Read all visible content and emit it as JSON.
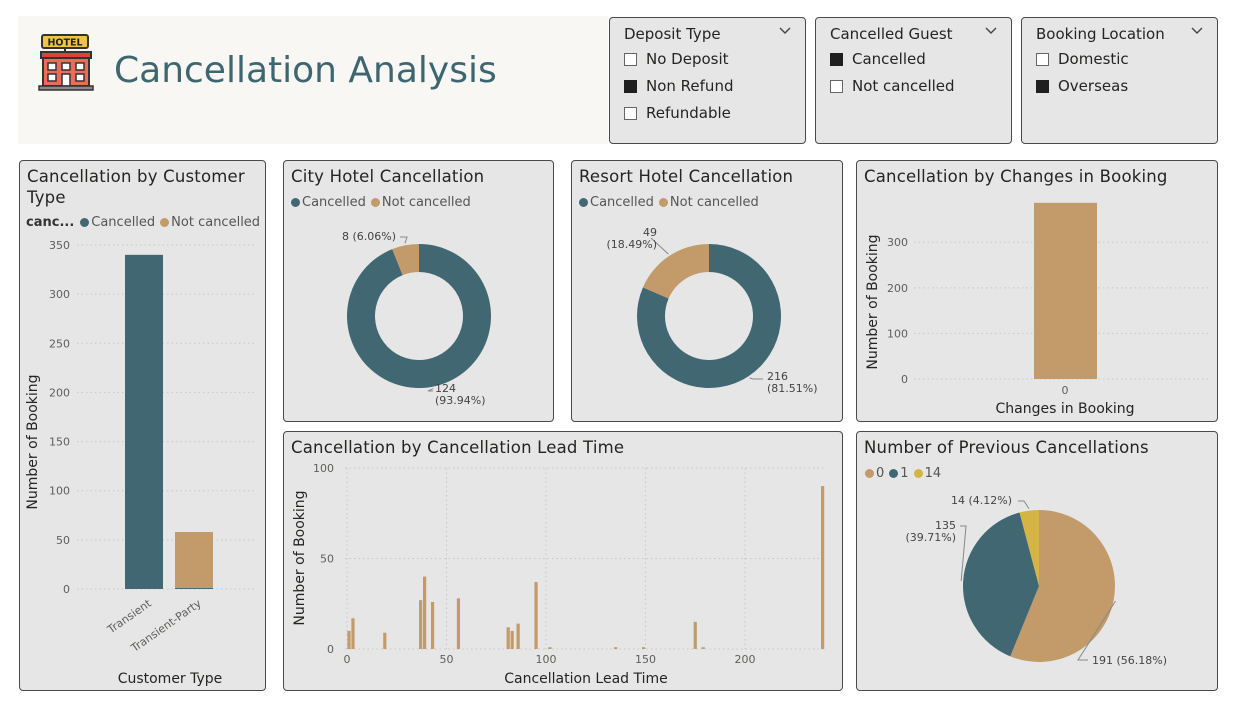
{
  "page": {
    "title": "Cancellation Analysis",
    "logo_text": "HOTEL"
  },
  "colors": {
    "cancelled": "#416872",
    "not_cancelled": "#c39a69",
    "gold": "#d6b443",
    "panel": "#e6e6e6"
  },
  "slicers": [
    {
      "title": "Deposit Type",
      "items": [
        {
          "label": "No Deposit",
          "checked": false
        },
        {
          "label": "Non Refund",
          "checked": true
        },
        {
          "label": "Refundable",
          "checked": false
        }
      ]
    },
    {
      "title": "Cancelled Guest",
      "items": [
        {
          "label": "Cancelled",
          "checked": true
        },
        {
          "label": "Not cancelled",
          "checked": false
        }
      ]
    },
    {
      "title": "Booking Location",
      "items": [
        {
          "label": "Domestic",
          "checked": false
        },
        {
          "label": "Overseas",
          "checked": true
        }
      ]
    }
  ],
  "customer": {
    "title": "Cancellation by Customer Type",
    "legend_title": "canc...",
    "legend": [
      "Cancelled",
      "Not cancelled"
    ]
  },
  "city": {
    "title": "City Hotel Cancellation",
    "legend": [
      "Cancelled",
      "Not cancelled"
    ]
  },
  "resort": {
    "title": "Resort Hotel Cancellation",
    "legend": [
      "Cancelled",
      "Not cancelled"
    ]
  },
  "changes": {
    "title": "Cancellation by Changes in Booking"
  },
  "leadtime": {
    "title": "Cancellation by Cancellation Lead Time"
  },
  "previous": {
    "title": "Number of Previous Cancellations",
    "legend": [
      "0",
      "1",
      "14"
    ]
  },
  "chart_data": [
    {
      "id": "customer",
      "type": "bar",
      "title": "Cancellation by Customer Type",
      "xlabel": "Customer Type",
      "ylabel": "Number of Booking",
      "categories": [
        "Transient",
        "Transient-Party"
      ],
      "series": [
        {
          "name": "Cancelled",
          "values": [
            340,
            1
          ]
        },
        {
          "name": "Not cancelled",
          "values": [
            0,
            57
          ]
        }
      ],
      "ylim": [
        0,
        350
      ],
      "yticks": [
        0,
        50,
        100,
        150,
        200,
        250,
        300,
        350
      ],
      "legend_position": "top-left",
      "grid": true
    },
    {
      "id": "city",
      "type": "pie",
      "title": "City Hotel Cancellation",
      "donut": true,
      "labels": [
        "Cancelled",
        "Not cancelled"
      ],
      "values": [
        124,
        8
      ],
      "data_labels": [
        [
          "124",
          "(93.94%)"
        ],
        [
          "8 (6.06%)"
        ]
      ]
    },
    {
      "id": "resort",
      "type": "pie",
      "title": "Resort Hotel Cancellation",
      "donut": true,
      "labels": [
        "Cancelled",
        "Not cancelled"
      ],
      "values": [
        216,
        49
      ],
      "data_labels": [
        [
          "216",
          "(81.51%)"
        ],
        [
          "49",
          "(18.49%)"
        ]
      ]
    },
    {
      "id": "changes",
      "type": "bar",
      "title": "Cancellation by Changes in Booking",
      "xlabel": "Changes in Booking",
      "ylabel": "Number of Booking",
      "categories": [
        "0"
      ],
      "values": [
        341
      ],
      "ylim": [
        0,
        340
      ],
      "yticks": [
        0,
        100,
        200,
        300
      ],
      "grid": true
    },
    {
      "id": "leadtime",
      "type": "bar",
      "title": "Cancellation by Cancellation Lead Time",
      "xlabel": "Cancellation Lead Time",
      "ylabel": "Number of Booking",
      "x": [
        1,
        3,
        19,
        37,
        39,
        43,
        56,
        81,
        83,
        86,
        95,
        102,
        135,
        149,
        175,
        179,
        239
      ],
      "values": [
        10,
        17,
        9,
        27,
        40,
        26,
        28,
        12,
        10,
        14,
        37,
        1,
        1,
        1,
        15,
        1,
        90
      ],
      "xlim": [
        -2,
        242
      ],
      "ylim": [
        0,
        100
      ],
      "xticks": [
        0,
        50,
        100,
        150,
        200
      ],
      "yticks": [
        0,
        50,
        100
      ],
      "grid": true
    },
    {
      "id": "previous",
      "type": "pie",
      "title": "Number of Previous Cancellations",
      "labels": [
        "0",
        "1",
        "14"
      ],
      "values": [
        191,
        135,
        14
      ],
      "data_labels": [
        [
          "191 (56.18%)"
        ],
        [
          "135",
          "(39.71%)"
        ],
        [
          "14 (4.12%)"
        ]
      ],
      "legend_position": "top-left"
    }
  ]
}
